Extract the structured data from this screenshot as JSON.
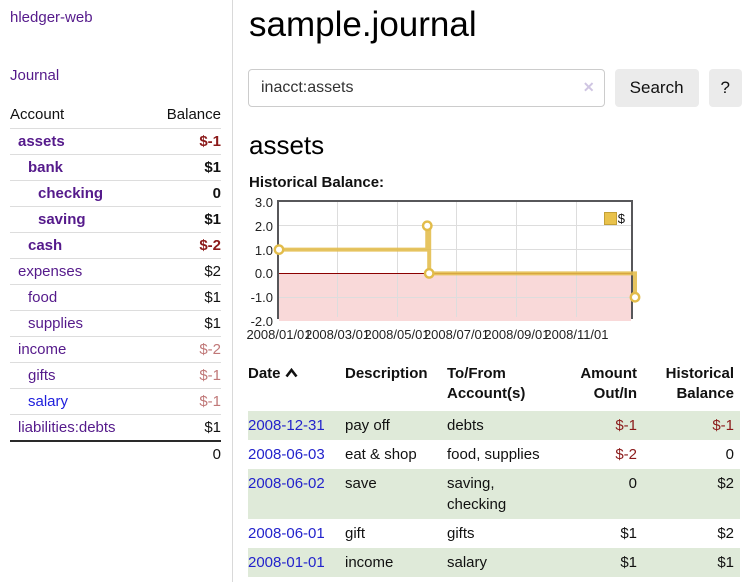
{
  "brand": "hledger-web",
  "nav": {
    "journal": "Journal"
  },
  "sidebar": {
    "headers": {
      "account": "Account",
      "balance": "Balance"
    },
    "rows": [
      {
        "name": "assets",
        "balance": "$-1"
      },
      {
        "name": "bank",
        "balance": "$1"
      },
      {
        "name": "checking",
        "balance": "0"
      },
      {
        "name": "saving",
        "balance": "$1"
      },
      {
        "name": "cash",
        "balance": "$-2"
      },
      {
        "name": "expenses",
        "balance": "$2"
      },
      {
        "name": "food",
        "balance": "$1"
      },
      {
        "name": "supplies",
        "balance": "$1"
      },
      {
        "name": "income",
        "balance": "$-2"
      },
      {
        "name": "gifts",
        "balance": "$-1"
      },
      {
        "name": "salary",
        "balance": "$-1"
      },
      {
        "name": "liabilities:debts",
        "balance": "$1"
      }
    ],
    "total": "0"
  },
  "main": {
    "title": "sample.journal",
    "search": {
      "value": "inacct:assets",
      "clear_icon": "✕",
      "search_button": "Search",
      "help_button": "?"
    },
    "account_heading": "assets",
    "section_label": "Historical Balance:"
  },
  "chart_data": {
    "type": "line",
    "title": "Historical Balance:",
    "series": [
      {
        "name": "$",
        "color": "#e2bc4a",
        "step": true,
        "points": [
          [
            "2008-01-01",
            1
          ],
          [
            "2008-06-01",
            2
          ],
          [
            "2008-06-03",
            0
          ],
          [
            "2008-12-31",
            -1
          ]
        ]
      }
    ],
    "x_domain": [
      "2008-01-01",
      "2008-12-31"
    ],
    "ylim": [
      -2,
      3
    ],
    "yticks": [
      3.0,
      2.0,
      1.0,
      0.0,
      -1.0,
      -2.0
    ],
    "xticks": [
      "2008/01/01",
      "2008/03/01",
      "2008/05/01",
      "2008/07/01",
      "2008/09/01",
      "2008/11/01"
    ],
    "grid": true,
    "legend_position": "top-right",
    "negative_fill": "#f9d9d9",
    "zero_line_color": "#8b0000"
  },
  "register": {
    "headers": {
      "date": "Date",
      "description": "Description",
      "accounts": "To/From Account(s)",
      "amount": "Amount Out/In",
      "balance": "Historical Balance"
    },
    "rows": [
      {
        "date": "2008-12-31",
        "description": "pay off",
        "accounts": "debts",
        "amount": "$-1",
        "balance": "$-1"
      },
      {
        "date": "2008-06-03",
        "description": "eat & shop",
        "accounts": "food, supplies",
        "amount": "$-2",
        "balance": "0"
      },
      {
        "date": "2008-06-02",
        "description": "save",
        "accounts": "saving, checking",
        "amount": "0",
        "balance": "$2"
      },
      {
        "date": "2008-06-01",
        "description": "gift",
        "accounts": "gifts",
        "amount": "$1",
        "balance": "$2"
      },
      {
        "date": "2008-01-01",
        "description": "income",
        "accounts": "salary",
        "amount": "$1",
        "balance": "$1"
      }
    ]
  },
  "colors": {
    "link_purple": "#551a8b",
    "link_blue": "#2020dd",
    "date_link_blue": "#2323cc",
    "negative_red": "#8b1a1a",
    "muted_negative_rose": "#c07878",
    "row_stripe_green": "#dfead9",
    "chart_line_gold": "#e2bc4a",
    "chart_negative_fill": "#f9d9d9",
    "zero_line_dark_red": "#8b0000",
    "button_gray": "#ebebeb"
  }
}
